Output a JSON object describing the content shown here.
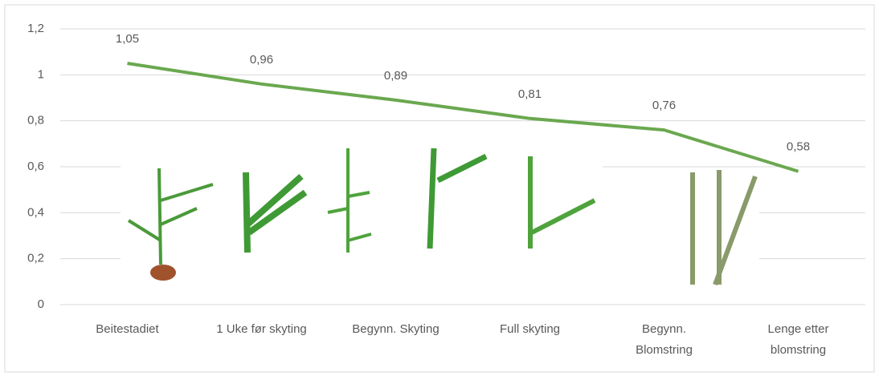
{
  "chart_data": {
    "type": "line",
    "categories": [
      "Beitestadiet",
      "1 Uke før skyting",
      "Begynn. Skyting",
      "Full skyting",
      "Begynn.\nBlomstring",
      "Lenge etter\nblomstring"
    ],
    "values": [
      1.05,
      0.96,
      0.89,
      0.81,
      0.76,
      0.58
    ],
    "value_labels": [
      "1,05",
      "0,96",
      "0,89",
      "0,81",
      "0,76",
      "0,58"
    ],
    "color": "#6aa84f",
    "ylim": [
      0,
      1.2
    ],
    "yticks": [
      0,
      {
        "value": 0.2,
        "label": "0,2"
      },
      {
        "value": 0.4,
        "label": "0,4"
      },
      {
        "value": 0.6,
        "label": "0,6"
      },
      {
        "value": 0.8,
        "label": "0,8"
      },
      1,
      {
        "value": 1.2,
        "label": "1,2"
      }
    ],
    "grid": true
  }
}
